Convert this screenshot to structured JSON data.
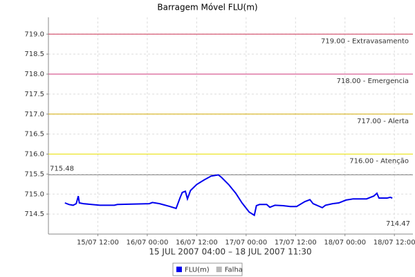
{
  "chart_data": {
    "type": "line",
    "title": "Barragem Móvel FLU(m)",
    "xlabel": "15 JUL 2007 04:00 – 18 JUL 2007 11:30",
    "x": [
      "15/07 04:00",
      "15/07 05:00",
      "15/07 06:00",
      "15/07 06:45",
      "15/07 07:15",
      "15/07 07:30",
      "15/07 08:30",
      "15/07 12:30",
      "15/07 16:00",
      "15/07 16:45",
      "16/07 00:30",
      "16/07 01:15",
      "16/07 03:00",
      "16/07 05:30",
      "16/07 07:00",
      "16/07 08:00",
      "16/07 08:30",
      "16/07 09:15",
      "16/07 09:45",
      "16/07 10:30",
      "16/07 12:00",
      "16/07 13:45",
      "16/07 15:30",
      "16/07 17:15",
      "16/07 18:00",
      "16/07 19:45",
      "16/07 21:30",
      "16/07 23:00",
      "17/07 00:45",
      "17/07 02:00",
      "17/07 02:30",
      "17/07 03:15",
      "17/07 05:00",
      "17/07 05:45",
      "17/07 07:00",
      "17/07 09:00",
      "17/07 10:45",
      "17/07 12:15",
      "17/07 14:15",
      "17/07 15:30",
      "17/07 16:15",
      "17/07 18:30",
      "17/07 19:15",
      "17/07 21:00",
      "17/07 22:30",
      "18/07 00:15",
      "18/07 02:00",
      "18/07 05:15",
      "18/07 07:00",
      "18/07 07:45",
      "18/07 08:15",
      "18/07 10:15",
      "18/07 11:00",
      "18/07 11:30"
    ],
    "series": [
      {
        "name": "FLU(m)",
        "color": "#0000ee",
        "values": [
          714.78,
          714.74,
          714.72,
          714.76,
          714.95,
          714.78,
          714.76,
          714.72,
          714.72,
          714.74,
          714.76,
          714.79,
          714.76,
          714.69,
          714.64,
          714.92,
          715.04,
          715.07,
          714.88,
          715.09,
          715.24,
          715.35,
          715.45,
          715.48,
          715.42,
          715.24,
          715.02,
          714.78,
          714.55,
          714.47,
          714.71,
          714.74,
          714.74,
          714.67,
          714.72,
          714.71,
          714.69,
          714.69,
          714.81,
          714.86,
          714.76,
          714.66,
          714.72,
          714.76,
          714.78,
          714.85,
          714.88,
          714.88,
          714.95,
          715.02,
          714.9,
          714.9,
          714.92,
          714.9
        ]
      }
    ],
    "failure": {
      "name": "Falha",
      "color": "#b8b8b8"
    },
    "xlim": [
      "15/07 00:00",
      "18/07 16:30"
    ],
    "xticks": [
      "15/07 12:00",
      "16/07 00:00",
      "16/07 12:00",
      "17/07 00:00",
      "17/07 12:00",
      "18/07 00:00",
      "18/07 12:00"
    ],
    "ylim": [
      714.0,
      719.42
    ],
    "yticks": [
      714.5,
      {
        "value": 715,
        "label": "715.0"
      },
      715.5,
      {
        "value": 716,
        "label": "716.0"
      },
      716.5,
      {
        "value": 717,
        "label": "717.0"
      },
      717.5,
      {
        "value": 718,
        "label": "718.0"
      },
      718.5,
      {
        "value": 719,
        "label": "719.0"
      }
    ],
    "grid": true,
    "markers": [
      {
        "value": 719,
        "label": "719.00 - Extravasamento",
        "color": "#cc3355"
      },
      {
        "value": 718,
        "label": "718.00 - Emergencia",
        "color": "#cc3377"
      },
      {
        "value": 717,
        "label": "717.00 - Alerta",
        "color": "#d4aa00"
      },
      {
        "value": 716,
        "label": "716.00 - Atenção",
        "color": "#e8e000"
      }
    ],
    "max_line": {
      "value": 715.48,
      "color": "#888888"
    },
    "min_label": 714.47
  }
}
